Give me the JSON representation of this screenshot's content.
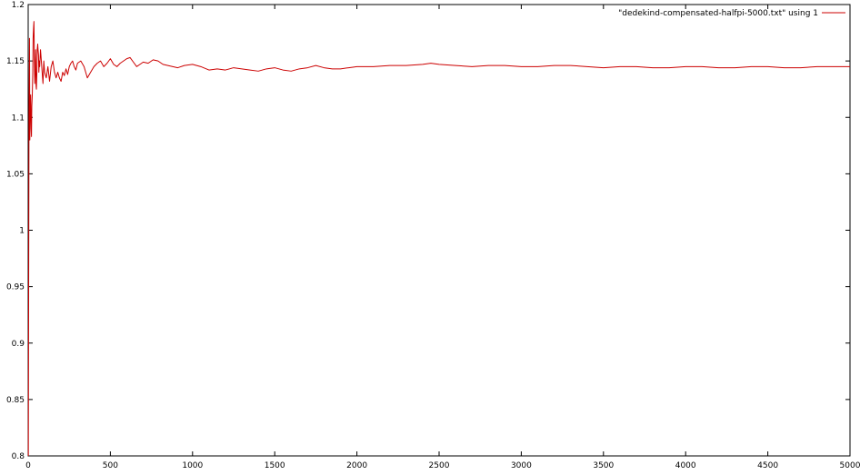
{
  "chart_data": {
    "type": "line",
    "title": "",
    "xlabel": "",
    "ylabel": "",
    "xlim": [
      0,
      5000
    ],
    "ylim": [
      0.8,
      1.2
    ],
    "xticks": [
      0,
      500,
      1000,
      1500,
      2000,
      2500,
      3000,
      3500,
      4000,
      4500,
      5000
    ],
    "yticks": [
      0.8,
      0.85,
      0.9,
      0.95,
      1,
      1.05,
      1.1,
      1.15,
      1.2
    ],
    "xtick_labels": [
      "0",
      "500",
      "1000",
      "1500",
      "2000",
      "2500",
      "3000",
      "3500",
      "4000",
      "4500",
      "5000"
    ],
    "ytick_labels": [
      "0.8",
      "0.85",
      "0.9",
      "0.95",
      "1",
      "1.05",
      "1.1",
      "1.15",
      "1.2"
    ],
    "grid": false,
    "legend_position": "top-right",
    "series": [
      {
        "name": "\"dedekind-compensated-halfpi-5000.txt\" using 1",
        "color": "#cc0000",
        "x": [
          1,
          3,
          5,
          8,
          10,
          12,
          15,
          18,
          20,
          22,
          25,
          28,
          30,
          33,
          35,
          38,
          40,
          42,
          45,
          48,
          50,
          53,
          55,
          58,
          60,
          63,
          65,
          68,
          70,
          75,
          80,
          85,
          90,
          95,
          100,
          110,
          120,
          130,
          140,
          150,
          160,
          170,
          180,
          190,
          200,
          210,
          220,
          230,
          240,
          250,
          260,
          270,
          280,
          290,
          300,
          320,
          340,
          360,
          380,
          400,
          420,
          440,
          460,
          480,
          500,
          520,
          540,
          560,
          580,
          600,
          620,
          640,
          660,
          680,
          700,
          730,
          760,
          790,
          820,
          850,
          880,
          910,
          950,
          1000,
          1050,
          1100,
          1150,
          1200,
          1250,
          1300,
          1350,
          1400,
          1450,
          1500,
          1550,
          1600,
          1650,
          1700,
          1750,
          1800,
          1850,
          1900,
          1950,
          2000,
          2100,
          2200,
          2300,
          2400,
          2450,
          2500,
          2600,
          2700,
          2800,
          2900,
          3000,
          3100,
          3200,
          3300,
          3400,
          3500,
          3600,
          3700,
          3800,
          3900,
          4000,
          4100,
          4200,
          4300,
          4400,
          4500,
          4600,
          4700,
          4800,
          4900,
          5000
        ],
        "y": [
          0.8,
          0.95,
          1.1,
          1.17,
          1.08,
          1.1,
          1.12,
          1.09,
          1.083,
          1.11,
          1.12,
          1.14,
          1.17,
          1.18,
          1.185,
          1.15,
          1.13,
          1.14,
          1.16,
          1.128,
          1.125,
          1.14,
          1.16,
          1.165,
          1.16,
          1.155,
          1.14,
          1.15,
          1.145,
          1.16,
          1.15,
          1.14,
          1.13,
          1.15,
          1.14,
          1.135,
          1.145,
          1.132,
          1.145,
          1.15,
          1.14,
          1.135,
          1.14,
          1.135,
          1.132,
          1.14,
          1.137,
          1.143,
          1.138,
          1.145,
          1.148,
          1.15,
          1.145,
          1.142,
          1.148,
          1.15,
          1.145,
          1.135,
          1.14,
          1.145,
          1.148,
          1.15,
          1.145,
          1.148,
          1.152,
          1.147,
          1.145,
          1.148,
          1.15,
          1.152,
          1.153,
          1.149,
          1.145,
          1.147,
          1.149,
          1.148,
          1.151,
          1.15,
          1.147,
          1.146,
          1.145,
          1.144,
          1.146,
          1.147,
          1.145,
          1.142,
          1.143,
          1.142,
          1.144,
          1.143,
          1.142,
          1.141,
          1.143,
          1.144,
          1.142,
          1.141,
          1.143,
          1.144,
          1.146,
          1.144,
          1.143,
          1.143,
          1.144,
          1.145,
          1.145,
          1.146,
          1.146,
          1.147,
          1.148,
          1.147,
          1.146,
          1.145,
          1.146,
          1.146,
          1.145,
          1.145,
          1.146,
          1.146,
          1.145,
          1.144,
          1.145,
          1.145,
          1.144,
          1.144,
          1.145,
          1.145,
          1.144,
          1.144,
          1.145,
          1.145,
          1.144,
          1.144,
          1.145,
          1.145,
          1.145
        ]
      }
    ]
  }
}
